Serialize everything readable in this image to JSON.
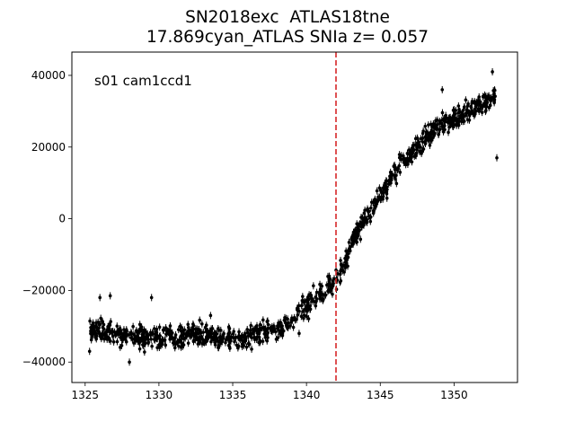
{
  "chart_data": {
    "type": "scatter",
    "title_line1": "SN2018exc  ATLAS18tne",
    "title_line2": "17.869cyan_ATLAS SNIa z= 0.057",
    "annotation": "s01 cam1ccd1",
    "xlabel": "",
    "ylabel": "",
    "xlim": [
      1324.1,
      1354.3
    ],
    "ylim": [
      -45700,
      46500
    ],
    "xticks": [
      1325,
      1330,
      1335,
      1340,
      1345,
      1350
    ],
    "yticks": [
      -40000,
      -20000,
      0,
      20000,
      40000
    ],
    "grid": false,
    "marker_color": "#000000",
    "vline": {
      "x": 1342.0,
      "color": "#d62728",
      "style": "dashed"
    },
    "trend": [
      {
        "x": 1325.3,
        "y": -31000
      },
      {
        "x": 1327.0,
        "y": -32000
      },
      {
        "x": 1329.0,
        "y": -33500
      },
      {
        "x": 1331.0,
        "y": -33000
      },
      {
        "x": 1333.0,
        "y": -32500
      },
      {
        "x": 1335.0,
        "y": -33500
      },
      {
        "x": 1337.0,
        "y": -32000
      },
      {
        "x": 1338.5,
        "y": -30000
      },
      {
        "x": 1340.0,
        "y": -24000
      },
      {
        "x": 1341.0,
        "y": -21000
      },
      {
        "x": 1342.0,
        "y": -17000
      },
      {
        "x": 1342.5,
        "y": -13000
      },
      {
        "x": 1343.0,
        "y": -7000
      },
      {
        "x": 1344.0,
        "y": 0
      },
      {
        "x": 1345.0,
        "y": 6000
      },
      {
        "x": 1346.0,
        "y": 13000
      },
      {
        "x": 1347.0,
        "y": 18000
      },
      {
        "x": 1348.0,
        "y": 22000
      },
      {
        "x": 1349.0,
        "y": 26000
      },
      {
        "x": 1350.0,
        "y": 28000
      },
      {
        "x": 1351.0,
        "y": 30000
      },
      {
        "x": 1352.0,
        "y": 32000
      },
      {
        "x": 1352.8,
        "y": 35000
      }
    ],
    "outliers": [
      {
        "x": 1325.3,
        "y": -37000
      },
      {
        "x": 1326.0,
        "y": -22000
      },
      {
        "x": 1326.7,
        "y": -21500
      },
      {
        "x": 1328.0,
        "y": -40000
      },
      {
        "x": 1329.5,
        "y": -22000
      },
      {
        "x": 1333.5,
        "y": -27000
      },
      {
        "x": 1339.5,
        "y": -32000
      },
      {
        "x": 1349.2,
        "y": 36000
      },
      {
        "x": 1352.9,
        "y": 17000
      },
      {
        "x": 1352.6,
        "y": 41000
      }
    ]
  }
}
